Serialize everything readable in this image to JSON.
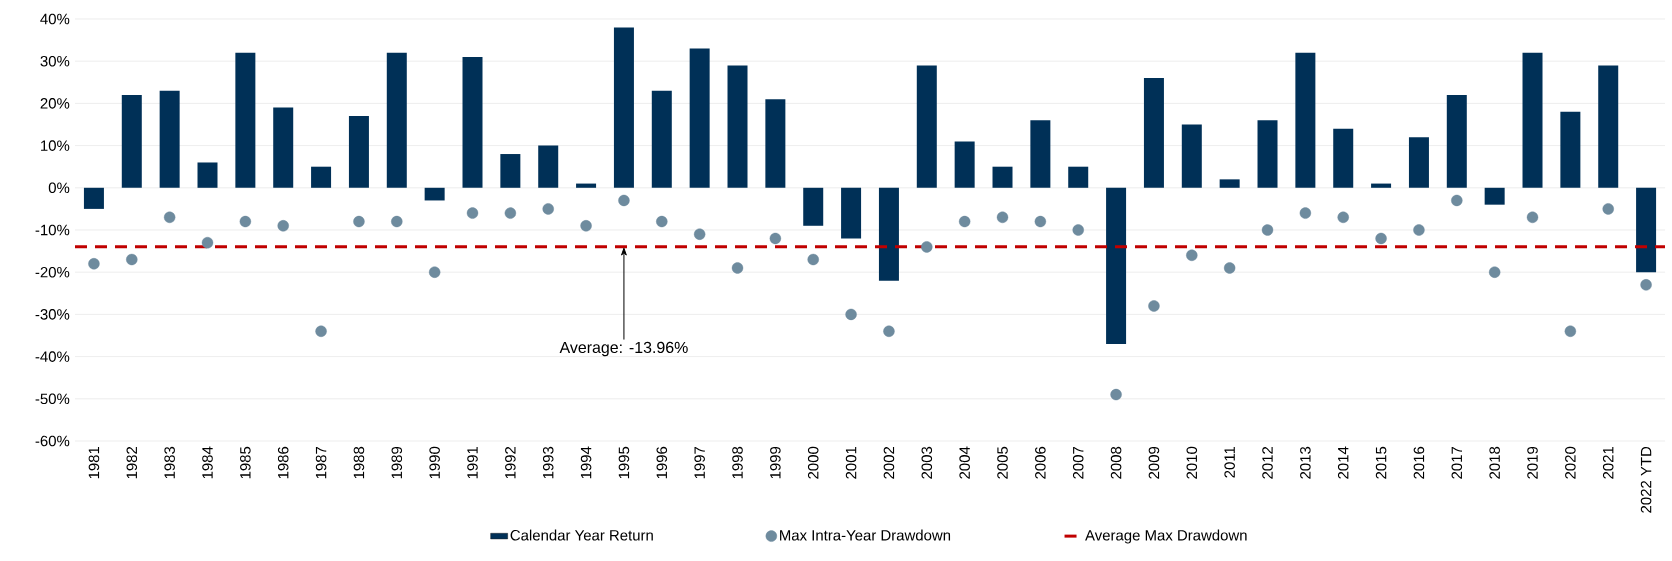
{
  "chart_data": {
    "type": "bar",
    "categories": [
      "1981",
      "1982",
      "1983",
      "1984",
      "1985",
      "1986",
      "1987",
      "1988",
      "1989",
      "1990",
      "1991",
      "1992",
      "1993",
      "1994",
      "1995",
      "1996",
      "1997",
      "1998",
      "1999",
      "2000",
      "2001",
      "2002",
      "2003",
      "2004",
      "2005",
      "2006",
      "2007",
      "2008",
      "2009",
      "2010",
      "2011",
      "2012",
      "2013",
      "2014",
      "2015",
      "2016",
      "2017",
      "2018",
      "2019",
      "2020",
      "2021",
      "2022 YTD"
    ],
    "series": [
      {
        "name": "Calendar Year Return",
        "color": "#003057",
        "values": [
          -5,
          22,
          23,
          6,
          32,
          19,
          5,
          17,
          32,
          -3,
          31,
          8,
          10,
          1,
          38,
          23,
          33,
          29,
          21,
          -9,
          -12,
          -22,
          29,
          11,
          5,
          16,
          5,
          -37,
          26,
          15,
          2,
          16,
          32,
          14,
          1,
          12,
          22,
          -4,
          32,
          18,
          29,
          -20
        ]
      },
      {
        "name": "Max Intra-Year Drawdown",
        "type": "scatter",
        "color": "#6e8b9e",
        "values": [
          -18,
          -17,
          -7,
          -13,
          -8,
          -9,
          -34,
          -8,
          -8,
          -20,
          -6,
          -6,
          -5,
          -9,
          -3,
          -8,
          -11,
          -19,
          -12,
          -17,
          -30,
          -34,
          -14,
          -8,
          -7,
          -8,
          -10,
          -49,
          -28,
          -16,
          -19,
          -10,
          -6,
          -7,
          -12,
          -10,
          -3,
          -20,
          -7,
          -34,
          -5,
          -23
        ]
      }
    ],
    "ref_lines": [
      {
        "axis": "y",
        "value": -13.96,
        "label": "Average Max Drawdown",
        "color": "#c00000",
        "line_style": "dashed"
      }
    ],
    "annotations": [
      {
        "text": "Average: -13.96%",
        "x": "1995",
        "y": -13.96
      }
    ],
    "ylim": [
      -60,
      40
    ],
    "yticks": [
      {
        "value": -60,
        "label": "-60%"
      },
      {
        "value": -50,
        "label": "-50%"
      },
      {
        "value": -40,
        "label": "-40%"
      },
      {
        "value": -30,
        "label": "-30%"
      },
      {
        "value": -20,
        "label": "-20%"
      },
      {
        "value": -10,
        "label": "-10%"
      },
      {
        "value": 0,
        "label": "0%"
      },
      {
        "value": 10,
        "label": "10%"
      },
      {
        "value": 20,
        "label": "20%"
      },
      {
        "value": 30,
        "label": "30%"
      },
      {
        "value": 40,
        "label": "40%"
      }
    ],
    "grid": "y",
    "marker": "circle",
    "legend": "bottom"
  }
}
